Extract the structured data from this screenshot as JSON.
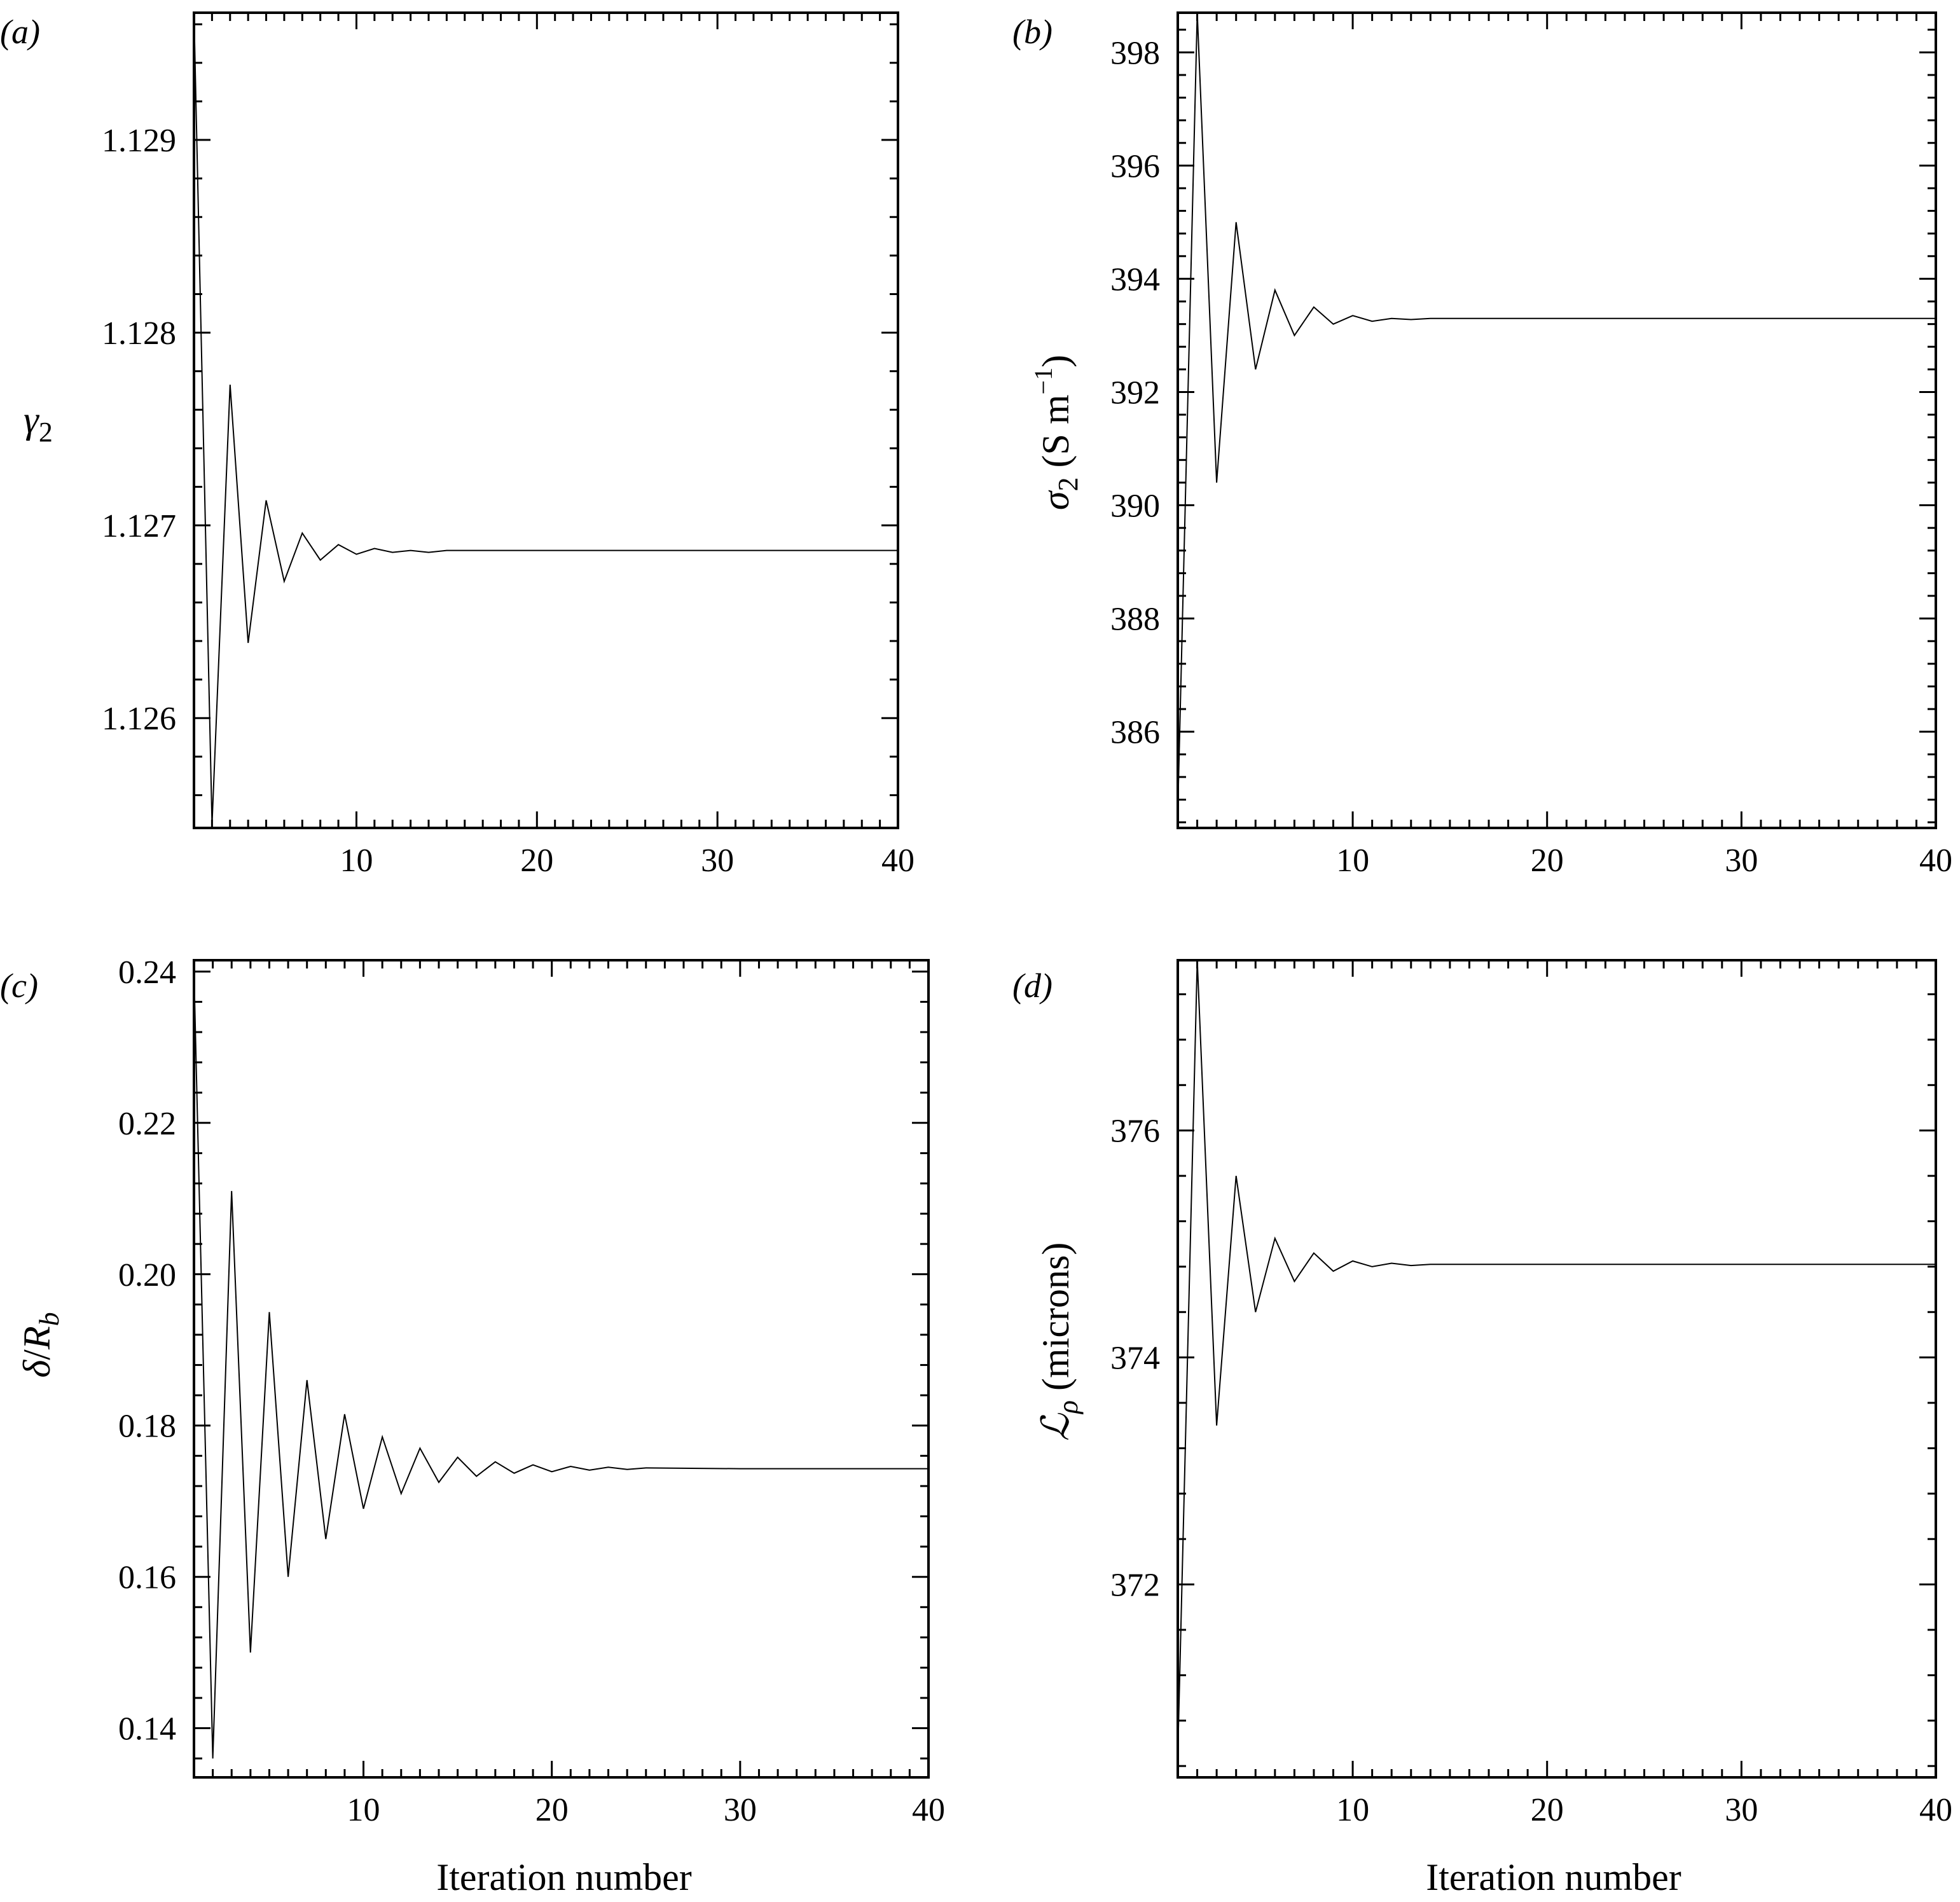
{
  "chart_data": [
    {
      "panel_label": "(a)",
      "type": "line",
      "xlabel": "",
      "ylabel": "γ2",
      "xlim": [
        1,
        40
      ],
      "ylim": [
        1.12543,
        1.12966
      ],
      "xticks": [
        10,
        20,
        30,
        40
      ],
      "yticks": [
        1.126,
        1.127,
        1.128,
        1.129
      ],
      "ytick_labels": [
        "1.126",
        "1.127",
        "1.128",
        "1.129"
      ],
      "x": [
        1,
        2,
        3,
        4,
        5,
        6,
        7,
        8,
        9,
        10,
        11,
        12,
        13,
        14,
        15,
        20,
        30,
        40
      ],
      "y": [
        1.12966,
        1.12545,
        1.12773,
        1.12639,
        1.12713,
        1.12671,
        1.12696,
        1.12682,
        1.1269,
        1.12685,
        1.12688,
        1.12686,
        1.12687,
        1.12686,
        1.12687,
        1.12687,
        1.12687,
        1.12687
      ]
    },
    {
      "panel_label": "(b)",
      "type": "line",
      "xlabel": "",
      "ylabel": "σ2 (S m−1)",
      "xlim": [
        1,
        40
      ],
      "ylim": [
        384.3,
        398.7
      ],
      "xticks": [
        10,
        20,
        30,
        40
      ],
      "yticks": [
        386,
        388,
        390,
        392,
        394,
        396,
        398
      ],
      "ytick_labels": [
        "386",
        "388",
        "390",
        "392",
        "394",
        "396",
        "398"
      ],
      "x": [
        1,
        2,
        3,
        4,
        5,
        6,
        7,
        8,
        9,
        10,
        11,
        12,
        13,
        14,
        15,
        20,
        30,
        40
      ],
      "y": [
        384.6,
        398.7,
        390.4,
        395.0,
        392.4,
        393.8,
        393.0,
        393.5,
        393.2,
        393.35,
        393.25,
        393.3,
        393.28,
        393.3,
        393.3,
        393.3,
        393.3,
        393.3
      ]
    },
    {
      "panel_label": "(c)",
      "type": "line",
      "xlabel": "Iteration number",
      "ylabel": "δ/Rb",
      "xlim": [
        1,
        40
      ],
      "ylim": [
        0.1335,
        0.2415
      ],
      "xticks": [
        10,
        20,
        30,
        40
      ],
      "yticks": [
        0.14,
        0.16,
        0.18,
        0.2,
        0.22,
        0.24
      ],
      "ytick_labels": [
        "0.14",
        "0.16",
        "0.18",
        "0.20",
        "0.22",
        "0.24"
      ],
      "x": [
        1,
        2,
        3,
        4,
        5,
        6,
        7,
        8,
        9,
        10,
        11,
        12,
        13,
        14,
        15,
        16,
        17,
        18,
        19,
        20,
        21,
        22,
        23,
        24,
        25,
        30,
        40
      ],
      "y": [
        0.24,
        0.136,
        0.211,
        0.15,
        0.195,
        0.16,
        0.186,
        0.165,
        0.1815,
        0.169,
        0.1785,
        0.171,
        0.177,
        0.1725,
        0.1758,
        0.1733,
        0.1752,
        0.1737,
        0.1748,
        0.1739,
        0.1746,
        0.1741,
        0.1745,
        0.1742,
        0.1744,
        0.1743,
        0.1743
      ]
    },
    {
      "panel_label": "(d)",
      "type": "line",
      "xlabel": "Iteration number",
      "ylabel": "ℒρ (microns)",
      "xlim": [
        1,
        40
      ],
      "ylim": [
        370.3,
        377.5
      ],
      "xticks": [
        10,
        20,
        30,
        40
      ],
      "yticks": [
        372,
        374,
        376
      ],
      "ytick_labels": [
        "372",
        "374",
        "376"
      ],
      "x": [
        1,
        2,
        3,
        4,
        5,
        6,
        7,
        8,
        9,
        10,
        11,
        12,
        13,
        14,
        15,
        20,
        30,
        40
      ],
      "y": [
        370.5,
        377.5,
        373.4,
        375.6,
        374.4,
        375.05,
        374.67,
        374.92,
        374.76,
        374.85,
        374.8,
        374.83,
        374.81,
        374.82,
        374.82,
        374.82,
        374.82,
        374.82
      ]
    }
  ]
}
